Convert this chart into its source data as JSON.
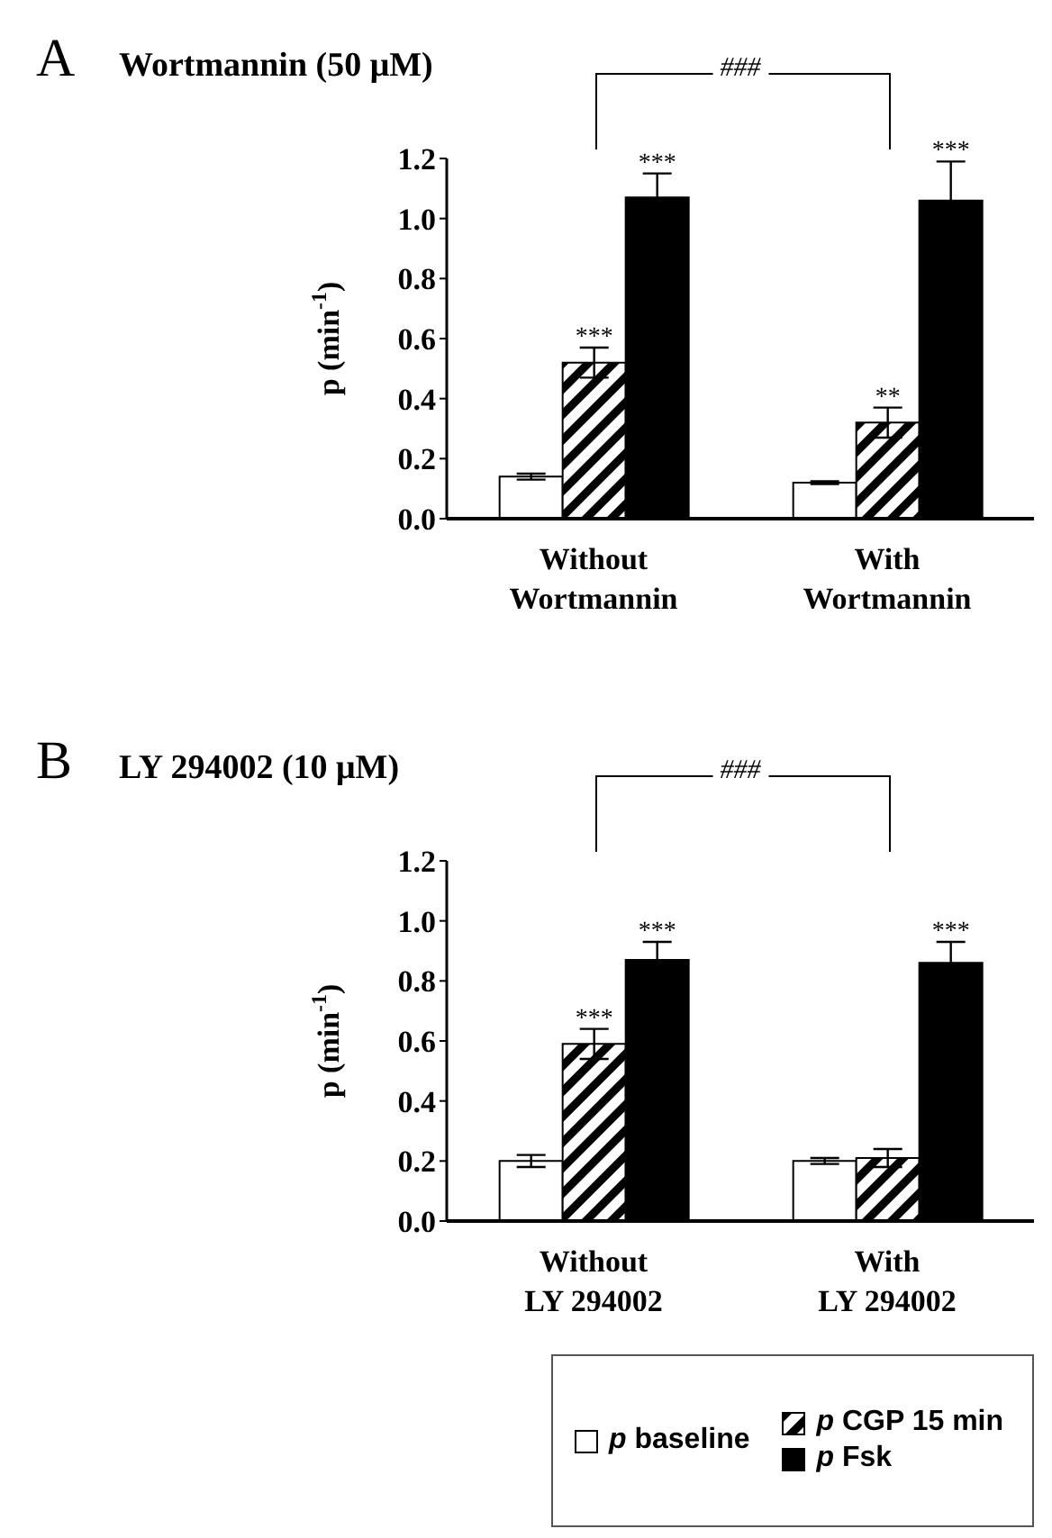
{
  "chart_data": [
    {
      "type": "bar",
      "title": "Wortmannin (50 μM)",
      "ylabel": "p (min$^{-1}$)",
      "categories": [
        "Without Wortmannin",
        "With Wortmannin"
      ],
      "ylim": [
        0,
        1.2
      ],
      "yticks": [
        {
          "value": 0,
          "label": "0.0"
        },
        {
          "value": 0.2,
          "label": "0.2"
        },
        {
          "value": 0.4,
          "label": "0.4"
        },
        {
          "value": 0.6,
          "label": "0.6"
        },
        {
          "value": 0.8,
          "label": "0.8"
        },
        {
          "value": 1,
          "label": "1.0"
        },
        {
          "value": 1.2,
          "label": "1.2"
        }
      ],
      "grid": false,
      "legend": false,
      "annotations": [
        "A",
        "###"
      ],
      "series": [
        {
          "color": "#ffffff",
          "values": [
            0.14,
            0.12
          ],
          "errors": [
            0.01,
            0.005
          ]
        },
        {
          "color": "#000000",
          "values": [
            0.52,
            0.32
          ],
          "errors": [
            0.05,
            0.05
          ],
          "value_labels": [
            "***",
            "**"
          ]
        },
        {
          "color": "#000000",
          "values": [
            1.07,
            1.06
          ],
          "errors": [
            0.08,
            0.13
          ],
          "value_labels": [
            "***",
            "***"
          ]
        }
      ]
    },
    {
      "type": "bar",
      "title": "LY 294002 (10 μM)",
      "ylabel": "p (min$^{-1}$)",
      "categories": [
        "Without LY 294002",
        "With LY 294002"
      ],
      "ylim": [
        0,
        1.2
      ],
      "yticks": [
        {
          "value": 0,
          "label": "0.0"
        },
        {
          "value": 0.2,
          "label": "0.2"
        },
        {
          "value": 0.4,
          "label": "0.4"
        },
        {
          "value": 0.6,
          "label": "0.6"
        },
        {
          "value": 0.8,
          "label": "0.8"
        },
        {
          "value": 1,
          "label": "1.0"
        },
        {
          "value": 1.2,
          "label": "1.2"
        }
      ],
      "grid": false,
      "legend": "bottom",
      "annotations": [
        "B",
        "###"
      ],
      "series": [
        {
          "name": "p baseline",
          "color": "#ffffff",
          "values": [
            0.2,
            0.2
          ],
          "errors": [
            0.02,
            0.01
          ]
        },
        {
          "name": "p CGP 15 min",
          "color": "#000000",
          "values": [
            0.59,
            0.21
          ],
          "errors": [
            0.05,
            0.03
          ],
          "value_labels": [
            "***",
            null
          ]
        },
        {
          "name": "p Fsk",
          "color": "#000000",
          "values": [
            0.87,
            0.86
          ],
          "errors": [
            0.06,
            0.07
          ],
          "value_labels": [
            "***",
            "***"
          ]
        }
      ]
    }
  ]
}
